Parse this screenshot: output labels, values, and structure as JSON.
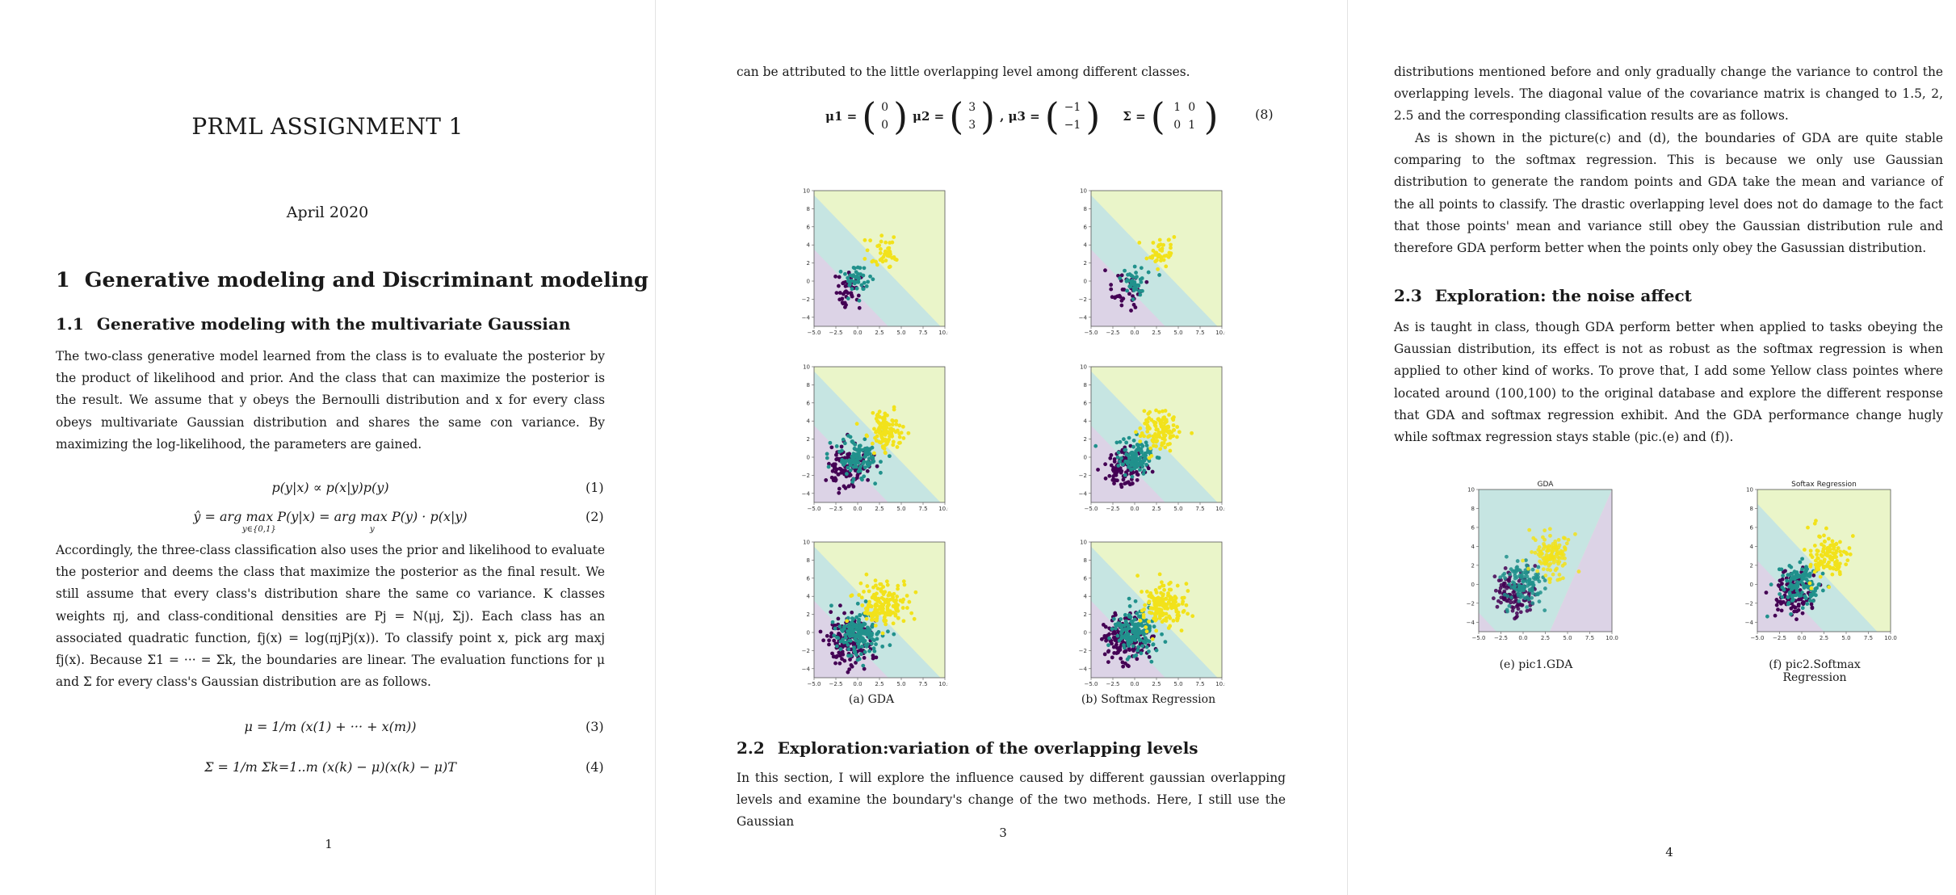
{
  "page1": {
    "title": "PRML ASSIGNMENT 1",
    "date": "April 2020",
    "section1_num": "1",
    "section1_title": "Generative modeling and Discriminant modeling",
    "section11_num": "1.1",
    "section11_title": "Generative modeling with the multivariate Gaussian",
    "para1": "The two-class generative model learned from the class is to evaluate the posterior by the product of likelihood and prior. And the class that can maximize the posterior is the result. We assume that y obeys the Bernoulli distribution and x for every class obeys multivariate Gaussian distribution and shares the same con variance. By maximizing the log-likelihood, the parameters are gained.",
    "eq1": "p(y|x) ∝ p(x|y)p(y)",
    "eq1_num": "(1)",
    "eq2": "ŷ = arg max P(y|x) = arg max P(y) · p(x|y)",
    "eq2_sub1": "y∈{0,1}",
    "eq2_sub2": "y",
    "eq2_num": "(2)",
    "para2": "Accordingly, the three-class classification also uses the prior and likelihood to evaluate the posterior and deems the class that maximize the posterior as the final result. We still assume that every class's distribution share the same co variance. K classes weights πj, and class-conditional densities are Pj = N(μj, Σj). Each class has an associated quadratic function, fj(x) = log(πjPj(x)). To classify point x, pick arg maxj fj(x). Because Σ1 = ··· = Σk, the boundaries are linear. The evaluation functions for μ and Σ for every class's Gaussian distribution are as follows.",
    "eq3": "μ = 1/m (x(1) + ··· + x(m))",
    "eq3_num": "(3)",
    "eq4": "Σ = 1/m Σk=1..m (x(k) − μ)(x(k) − μ)T",
    "eq4_num": "(4)",
    "page_number": "1"
  },
  "page3": {
    "intro_line": "can be attributed to the little overlapping level among different classes.",
    "mu1_label": "μ1 =",
    "mu1": [
      "0",
      "0"
    ],
    "mu2_label": "μ2 =",
    "mu2": [
      "3",
      "3"
    ],
    "mu3_label": ", μ3 =",
    "mu3": [
      "−1",
      "−1"
    ],
    "sigma_label": "Σ =",
    "sigma": [
      "1",
      "0",
      "0",
      "1"
    ],
    "eq8_num": "(8)",
    "caption_a": "(a) GDA",
    "caption_b": "(b) Softmax Regression",
    "section22_num": "2.2",
    "section22_title": "Exploration:variation of the overlapping levels",
    "para_22": "In this section, I will explore the influence caused by different gaussian overlapping levels and examine the boundary's change of the two methods. Here, I still use the Gaussian",
    "page_number": "3"
  },
  "page4": {
    "para_top": "distributions mentioned before and only gradually change the variance to control the overlapping levels. The diagonal value of the covariance matrix is changed to 1.5, 2, 2.5 and the corresponding classification results are as follows.",
    "para_gda": "As is shown in the picture(c) and (d), the boundaries of GDA are quite stable comparing to the softmax regression. This is because we only use Gaussian distribution to generate the random points and GDA take the mean and variance of the all points to classify. The drastic overlapping level does not do damage to the fact that those points' mean and variance still obey the Gaussian distribution rule and therefore GDA perform better when the points only obey the Gasussian distribution.",
    "section23_num": "2.3",
    "section23_title": "Exploration: the noise affect",
    "para_23": "As is taught in class, though GDA perform better when applied to tasks obeying the Gaussian distribution, its effect is not as robust as the softmax regression is when applied to other kind of works. To prove that, I add some Yellow class pointes where located around (100,100) to the original database and explore the different response that GDA and softmax regression exhibit. And the GDA performance change hugly while softmax regression stays stable (pic.(e) and (f)).",
    "plot_e_title": "GDA",
    "plot_f_title": "Softax Regression",
    "caption_e": "(e) pic1.GDA",
    "caption_f": "(f) pic2.Softmax Regression",
    "page_number": "4"
  },
  "colors": {
    "region_yellow": "#eaf5c9",
    "region_teal": "#c6e5e2",
    "region_purple": "#dcd3e6",
    "pt_purple": "#440154",
    "pt_teal": "#21918c",
    "pt_yellow": "#f2e21b"
  },
  "chart_data": [
    {
      "type": "scatter",
      "panel": "GDA row1",
      "x_ticks": [
        "−5.0",
        "−2.5",
        "0.0",
        "2.5",
        "5.0",
        "7.5",
        "10.0"
      ],
      "y_ticks": [
        "10",
        "8",
        "6",
        "4",
        "2",
        "0",
        "−2",
        "−4"
      ],
      "xlim": [
        -5,
        10
      ],
      "ylim": [
        -5,
        10
      ],
      "series": [
        {
          "mean": [
            -1,
            -1
          ],
          "var": 1
        },
        {
          "mean": [
            0,
            0
          ],
          "var": 1
        },
        {
          "mean": [
            3,
            3
          ],
          "var": 1
        }
      ]
    },
    {
      "type": "scatter",
      "panel": "Softmax row1",
      "xlim": [
        -5,
        10
      ],
      "ylim": [
        -5,
        10
      ],
      "series": [
        {
          "mean": [
            -1,
            -1
          ],
          "var": 1
        },
        {
          "mean": [
            0,
            0
          ],
          "var": 1
        },
        {
          "mean": [
            3,
            3
          ],
          "var": 1
        }
      ]
    },
    {
      "type": "scatter",
      "panel": "GDA row2",
      "xlim": [
        -5,
        10
      ],
      "ylim": [
        -5,
        10
      ],
      "series": [
        {
          "mean": [
            -1,
            -1
          ],
          "var": 1.5
        },
        {
          "mean": [
            0,
            0
          ],
          "var": 1.5
        },
        {
          "mean": [
            3,
            3
          ],
          "var": 1.5
        }
      ]
    },
    {
      "type": "scatter",
      "panel": "Softmax row2",
      "xlim": [
        -5,
        10
      ],
      "ylim": [
        -5,
        10
      ],
      "series": [
        {
          "mean": [
            -1,
            -1
          ],
          "var": 1.5
        },
        {
          "mean": [
            0,
            0
          ],
          "var": 1.5
        },
        {
          "mean": [
            3,
            3
          ],
          "var": 1.5
        }
      ]
    },
    {
      "type": "scatter",
      "panel": "GDA row3",
      "xlim": [
        -5,
        10
      ],
      "ylim": [
        -5,
        10
      ],
      "series": [
        {
          "mean": [
            -1,
            -1
          ],
          "var": 2
        },
        {
          "mean": [
            0,
            0
          ],
          "var": 2
        },
        {
          "mean": [
            3,
            3
          ],
          "var": 2
        }
      ]
    },
    {
      "type": "scatter",
      "panel": "Softmax row3",
      "xlim": [
        -5,
        10
      ],
      "ylim": [
        -5,
        10
      ],
      "series": [
        {
          "mean": [
            -1,
            -1
          ],
          "var": 2
        },
        {
          "mean": [
            0,
            0
          ],
          "var": 2
        },
        {
          "mean": [
            3,
            3
          ],
          "var": 2
        }
      ]
    },
    {
      "type": "scatter",
      "panel": "GDA noise",
      "title": "GDA",
      "xlim": [
        -5,
        10
      ],
      "ylim": [
        -5,
        10
      ]
    },
    {
      "type": "scatter",
      "panel": "Softmax noise",
      "title": "Softax Regression",
      "xlim": [
        -5,
        10
      ],
      "ylim": [
        -5,
        10
      ]
    }
  ]
}
